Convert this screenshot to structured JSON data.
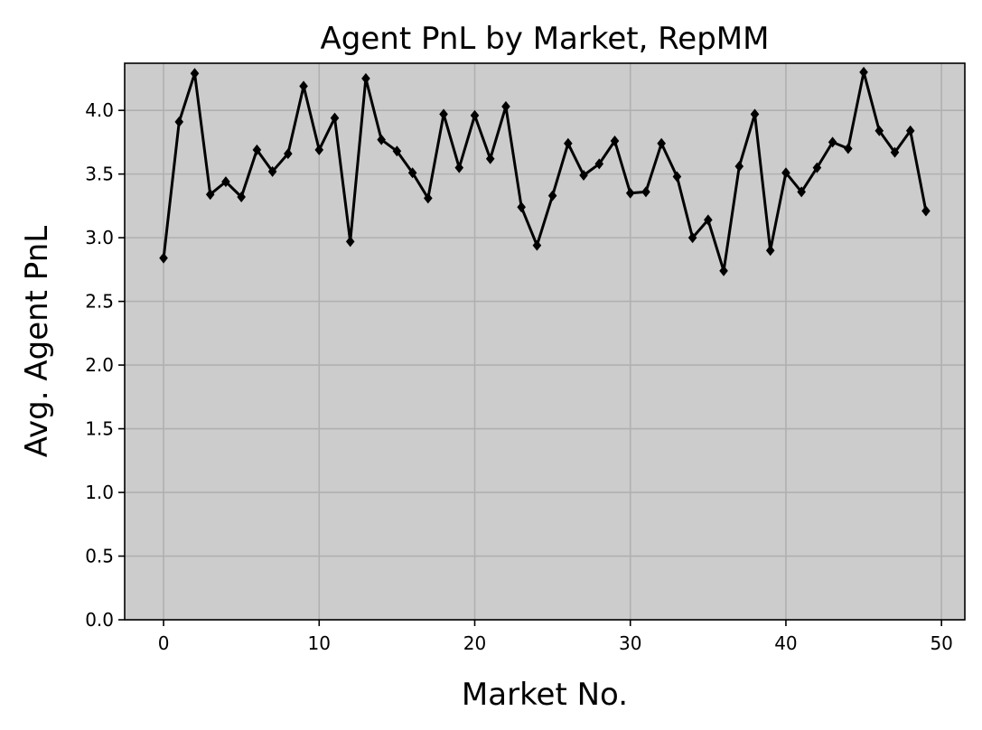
{
  "chart_data": {
    "type": "line",
    "title": "Agent PnL by Market, RepMM",
    "xlabel": "Market No.",
    "ylabel": "Avg. Agent PnL",
    "xlim": [
      -2.5,
      51.5
    ],
    "ylim": [
      0,
      4.37
    ],
    "xticks": [
      0,
      10,
      20,
      30,
      40,
      50
    ],
    "yticks": [
      "0.0",
      "0.5",
      "1.0",
      "1.5",
      "2.0",
      "2.5",
      "3.0",
      "3.5",
      "4.0"
    ],
    "grid": true,
    "background_color": "#cccccc",
    "line_color": "#000000",
    "marker": "diamond",
    "series": [
      {
        "x": [
          0,
          1,
          2,
          3,
          4,
          5,
          6,
          7,
          8,
          9,
          10,
          11,
          12,
          13,
          14,
          15,
          16,
          17,
          18,
          19,
          20,
          21,
          22,
          23,
          24,
          25,
          26,
          27,
          28,
          29,
          30,
          31,
          32,
          33,
          34,
          35,
          36,
          37,
          38,
          39,
          40,
          41,
          42,
          43,
          44,
          45,
          46,
          47,
          48,
          49
        ],
        "values": [
          2.84,
          3.91,
          4.29,
          3.34,
          3.44,
          3.32,
          3.69,
          3.52,
          3.66,
          4.19,
          3.69,
          3.94,
          2.97,
          4.25,
          3.77,
          3.68,
          3.51,
          3.31,
          3.97,
          3.55,
          3.96,
          3.62,
          4.03,
          3.24,
          2.94,
          3.33,
          3.74,
          3.49,
          3.58,
          3.76,
          3.35,
          3.36,
          3.74,
          3.48,
          3.0,
          3.14,
          2.74,
          3.56,
          3.97,
          2.9,
          3.51,
          3.36,
          3.55,
          3.75,
          3.7,
          4.3,
          3.84,
          3.67,
          3.84,
          3.21
        ]
      }
    ]
  }
}
